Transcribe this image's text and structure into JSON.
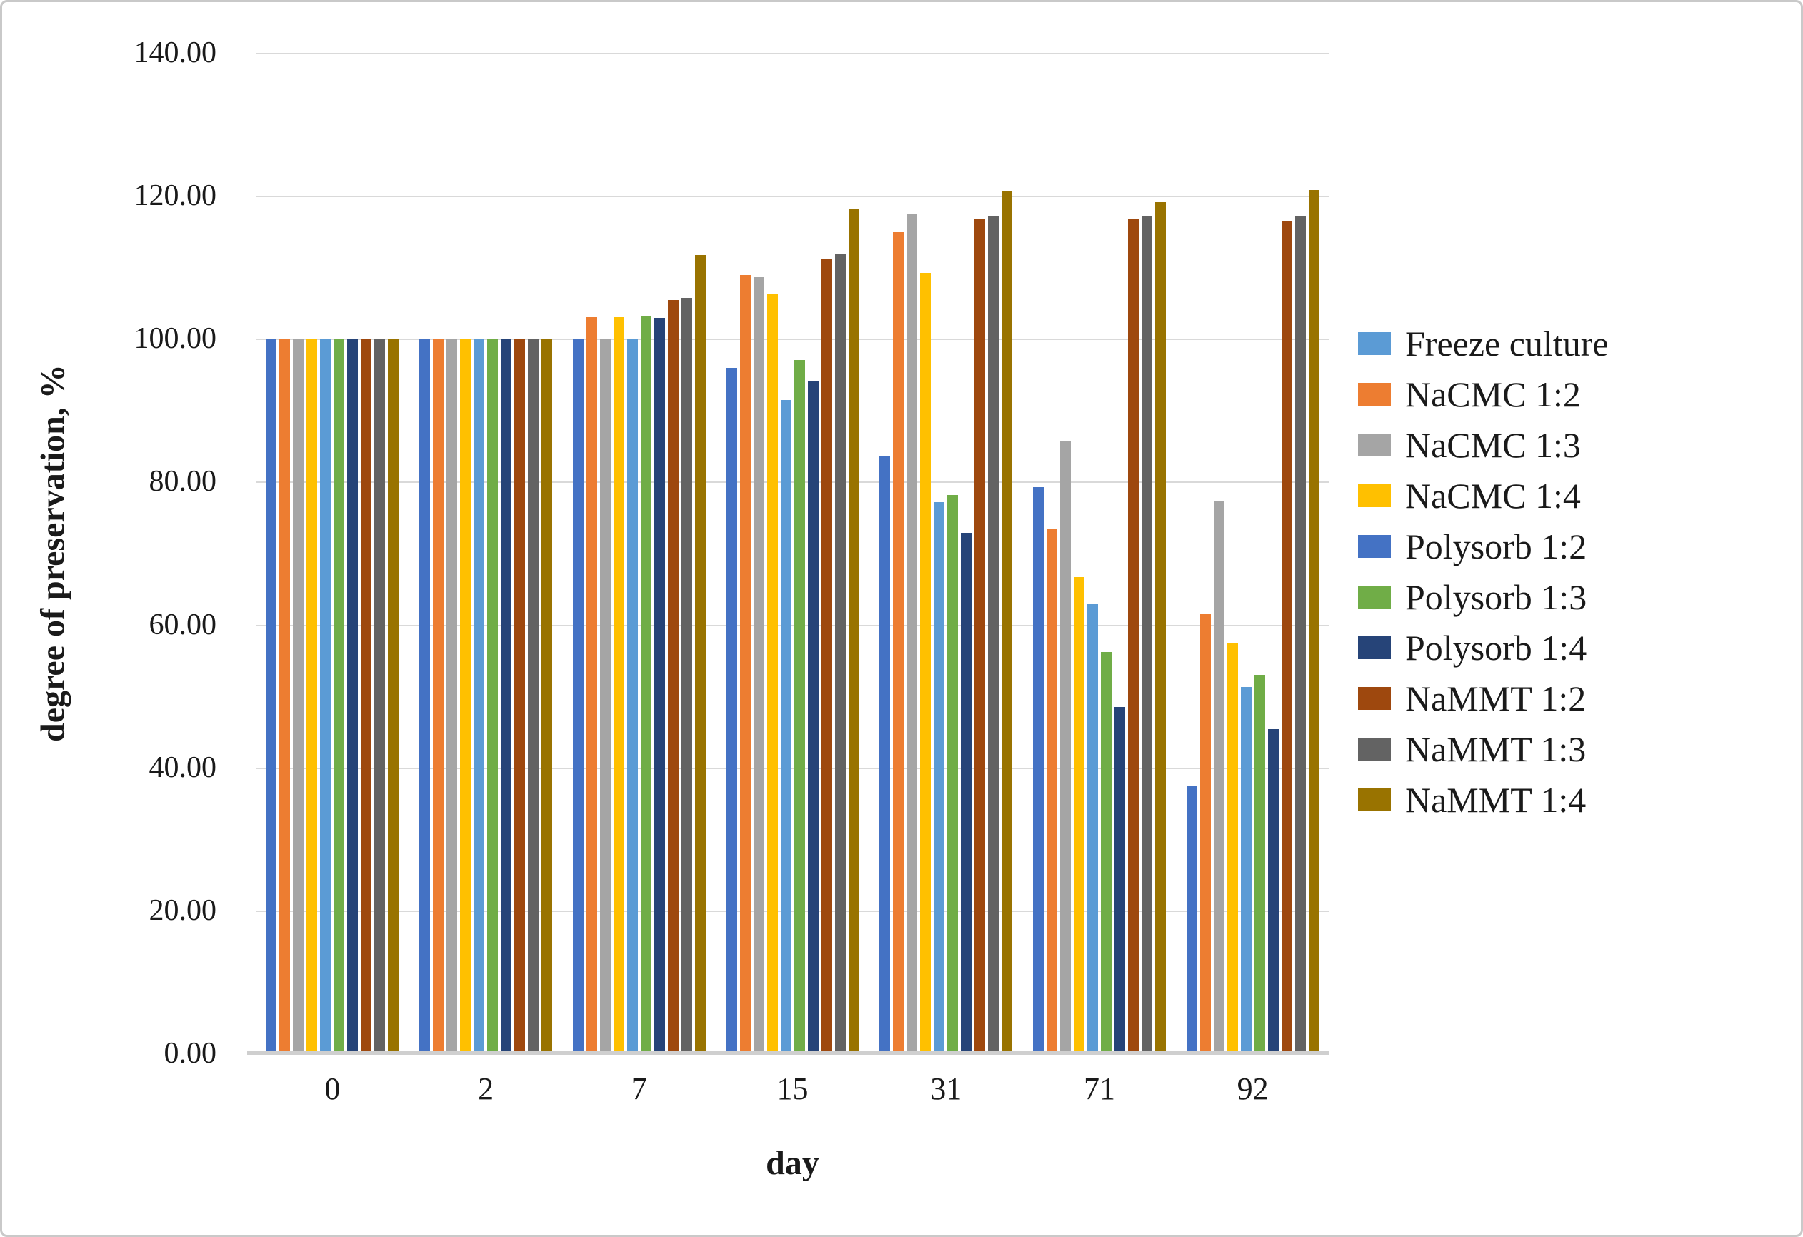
{
  "chart_data": {
    "type": "bar",
    "title": "",
    "xlabel": "day",
    "ylabel": "degree of preservation, %",
    "categories": [
      "0",
      "2",
      "7",
      "15",
      "31",
      "71",
      "92"
    ],
    "ylim": [
      0,
      140
    ],
    "y_tick_step": 20,
    "y_tick_labels": [
      "0.00",
      "20.00",
      "40.00",
      "60.00",
      "80.00",
      "100.00",
      "120.00",
      "140.00"
    ],
    "grid": "horizontal",
    "legend_position": "right",
    "series": [
      {
        "name": "Polysorb 1:2",
        "color": "#4472C4",
        "values": [
          100,
          100,
          100.0,
          95.9,
          83.5,
          79.2,
          37.4
        ]
      },
      {
        "name": "NaCMC 1:2",
        "color": "#ED7D31",
        "values": [
          100,
          100,
          103.0,
          108.9,
          114.9,
          73.4,
          61.5
        ]
      },
      {
        "name": "NaCMC 1:3",
        "color": "#A5A5A5",
        "values": [
          100,
          100,
          100.0,
          108.6,
          117.5,
          85.6,
          77.2
        ]
      },
      {
        "name": "NaCMC 1:4",
        "color": "#FFC000",
        "values": [
          100,
          100,
          103.0,
          106.2,
          109.2,
          66.7,
          57.4
        ]
      },
      {
        "name": "Freeze culture",
        "color": "#5B9BD5",
        "values": [
          100,
          100,
          100.0,
          91.4,
          77.1,
          63.0,
          51.3
        ]
      },
      {
        "name": "Polysorb 1:3",
        "color": "#70AD47",
        "values": [
          100,
          100,
          103.2,
          97.0,
          78.1,
          56.2,
          53.0
        ]
      },
      {
        "name": "Polysorb 1:4",
        "color": "#264478",
        "values": [
          100,
          100,
          102.9,
          94.0,
          72.8,
          48.5,
          45.4
        ]
      },
      {
        "name": "NaMMT 1:2",
        "color": "#9E480E",
        "values": [
          100,
          100,
          105.4,
          111.2,
          116.7,
          116.7,
          116.5
        ]
      },
      {
        "name": "NaMMT 1:3",
        "color": "#636363",
        "values": [
          100,
          100,
          105.7,
          111.8,
          117.1,
          117.1,
          117.2
        ]
      },
      {
        "name": "NaMMT 1:4",
        "color": "#997300",
        "values": [
          100,
          100,
          111.7,
          118.1,
          120.6,
          119.1,
          120.8
        ]
      }
    ],
    "legend": [
      {
        "label": "Freeze culture",
        "color": "#5B9BD5"
      },
      {
        "label": "NaCMC 1:2",
        "color": "#ED7D31"
      },
      {
        "label": "NaCMC 1:3",
        "color": "#A5A5A5"
      },
      {
        "label": "NaCMC 1:4",
        "color": "#FFC000"
      },
      {
        "label": "Polysorb 1:2",
        "color": "#4472C4"
      },
      {
        "label": "Polysorb 1:3",
        "color": "#70AD47"
      },
      {
        "label": "Polysorb 1:4",
        "color": "#264478"
      },
      {
        "label": "NaMMT 1:2",
        "color": "#9E480E"
      },
      {
        "label": "NaMMT 1:3",
        "color": "#636363"
      },
      {
        "label": "NaMMT 1:4",
        "color": "#997300"
      }
    ]
  }
}
